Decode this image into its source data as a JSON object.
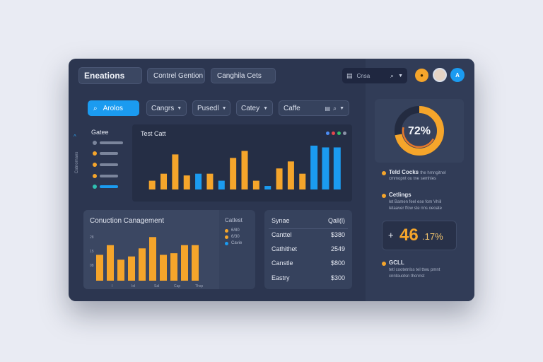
{
  "header": {
    "brand": "Eneations",
    "tab1": "Contrel Gention",
    "tab2": "Canghila Cets",
    "search_label": "Cnsa"
  },
  "filters": {
    "primary": "Arolos",
    "f1": "Cangrs",
    "f2": "Pusedl",
    "f3": "Catey",
    "f4": "Caffe"
  },
  "sidebar": {
    "vertical_text": "Catnomaes"
  },
  "legend_panel": {
    "title": "Gatee"
  },
  "main_chart": {
    "title": "Test Catt",
    "dot_colors": [
      "#4c8df5",
      "#e5484d",
      "#34c26d",
      "#8b93a8"
    ]
  },
  "bottom_chart": {
    "title": "Conuction Canagement",
    "y_ticks": [
      "28",
      "15",
      "08"
    ],
    "x_ticks": [
      "I",
      "Iol",
      "Sal",
      "Cap",
      "Thsp"
    ],
    "legend_title": "Catlest",
    "legend_items": [
      {
        "label": "6/80",
        "color": "#f5a52b"
      },
      {
        "label": "6/30",
        "color": "#f5a52b"
      },
      {
        "label": "Cavie",
        "color": "#1b9bf0"
      }
    ]
  },
  "table": {
    "headers": [
      "Synae",
      "Qall(l)"
    ],
    "rows": [
      {
        "name": "Canttel",
        "value": "$380"
      },
      {
        "name": "Cathithet",
        "value": "2549"
      },
      {
        "name": "Canstle",
        "value": "$800"
      },
      {
        "name": "Eastry",
        "value": "$300"
      }
    ]
  },
  "right": {
    "donut_value": "72%",
    "donut_fraction": 0.72,
    "item1_title": "Teld Cocks",
    "item1_suffix": "the hrnngitnel",
    "item1_desc": "cmmopnt ou tne semhies",
    "item2_title": "Cetlings",
    "item2_desc1": "let Bamen feel ese fom Vhiil",
    "item2_desc2": "letaaver ffow ste nns oeoate",
    "stat_prefix": "+",
    "stat_big": "46",
    "stat_small": ".17%",
    "item3_title": "GCLL",
    "item3_desc1": "tetl cootetnlss tel ttwu pmnt",
    "item3_desc2": "cnntouotsn thcnnst"
  },
  "chart_data": [
    {
      "type": "bar",
      "title": "Test Catt",
      "series": [
        {
          "color": "#f5a52b",
          "values": [
            10,
            18,
            40,
            16,
            null,
            18,
            null,
            36,
            44,
            10,
            null,
            24,
            32,
            18,
            null,
            null,
            null
          ]
        },
        {
          "color": "#1b9bf0",
          "values": [
            null,
            null,
            null,
            null,
            18,
            null,
            10,
            null,
            null,
            null,
            4,
            null,
            null,
            null,
            50,
            48,
            48
          ]
        }
      ]
    },
    {
      "type": "bar",
      "title": "Conuction Canagement",
      "values": [
        16,
        22,
        13,
        15,
        20,
        27,
        16,
        17,
        22,
        22
      ],
      "color": "#f5a52b",
      "ylabel_ticks": [
        "28",
        "15",
        "08"
      ]
    }
  ],
  "colors": {
    "orange": "#f5a52b",
    "blue": "#1b9bf0",
    "bg": "#2c3650"
  }
}
